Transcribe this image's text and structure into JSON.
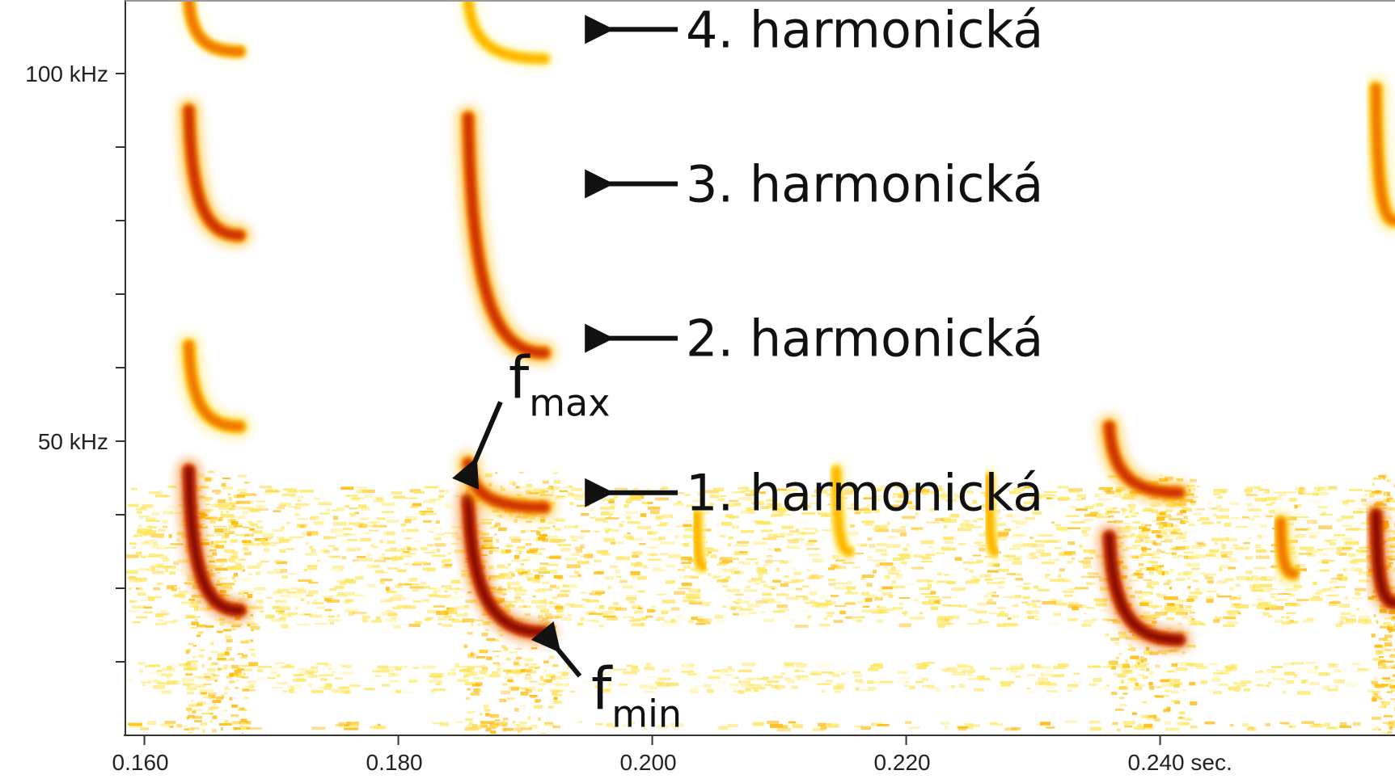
{
  "chart_data": {
    "type": "heatmap",
    "title": "",
    "xlabel": "",
    "ylabel": "",
    "x_unit": "sec.",
    "xlim": [
      0.1585,
      0.2585
    ],
    "ylim": [
      10,
      110
    ],
    "x_ticks": [
      {
        "value": 0.16,
        "label": "0.160"
      },
      {
        "value": 0.18,
        "label": "0.180"
      },
      {
        "value": 0.2,
        "label": "0.200"
      },
      {
        "value": 0.22,
        "label": "0.220"
      },
      {
        "value": 0.24,
        "label": "0.240 sec."
      }
    ],
    "y_ticks": [
      {
        "value": 20,
        "label": ""
      },
      {
        "value": 30,
        "label": ""
      },
      {
        "value": 40,
        "label": ""
      },
      {
        "value": 50,
        "label": "50 kHz"
      },
      {
        "value": 60,
        "label": ""
      },
      {
        "value": 70,
        "label": ""
      },
      {
        "value": 80,
        "label": ""
      },
      {
        "value": 90,
        "label": ""
      },
      {
        "value": 100,
        "label": "100 kHz"
      }
    ],
    "colormap": [
      "#fffbd0",
      "#ffe55a",
      "#ffb800",
      "#f07a00",
      "#d03500",
      "#8f0d00"
    ],
    "grid": false,
    "calls": [
      {
        "t_start": 0.1635,
        "t_end": 0.1675,
        "harmonics": [
          {
            "n": 1,
            "f_start": 46,
            "f_end": 27,
            "intensity": 1.0
          },
          {
            "n": 2,
            "f_start": 63,
            "f_end": 52,
            "intensity": 0.55
          },
          {
            "n": 3,
            "f_start": 95,
            "f_end": 78,
            "intensity": 0.75
          },
          {
            "n": 4,
            "f_start": 110,
            "f_end": 103,
            "intensity": 0.5
          }
        ]
      },
      {
        "t_start": 0.1855,
        "t_end": 0.1915,
        "harmonics": [
          {
            "n": 1,
            "f_start": 42,
            "f_end": 24,
            "intensity": 1.0
          },
          {
            "n": 2,
            "f_start": 47,
            "f_end": 41,
            "intensity": 0.8
          },
          {
            "n": 3,
            "f_start": 94,
            "f_end": 62,
            "intensity": 0.85
          },
          {
            "n": 4,
            "f_start": 110,
            "f_end": 102,
            "intensity": 0.45
          }
        ]
      },
      {
        "t_start": 0.2035,
        "t_end": 0.204,
        "harmonics": [
          {
            "n": 1,
            "f_start": 40,
            "f_end": 33,
            "intensity": 0.35
          }
        ]
      },
      {
        "t_start": 0.2145,
        "t_end": 0.2155,
        "harmonics": [
          {
            "n": 1,
            "f_start": 46,
            "f_end": 35,
            "intensity": 0.4
          }
        ]
      },
      {
        "t_start": 0.2265,
        "t_end": 0.227,
        "harmonics": [
          {
            "n": 1,
            "f_start": 45,
            "f_end": 35,
            "intensity": 0.45
          }
        ]
      },
      {
        "t_start": 0.236,
        "t_end": 0.2415,
        "harmonics": [
          {
            "n": 1,
            "f_start": 37,
            "f_end": 23,
            "intensity": 1.0
          },
          {
            "n": 2,
            "f_start": 52,
            "f_end": 43,
            "intensity": 0.8
          },
          {
            "n": 3,
            "f_start": 62,
            "f_end": 62,
            "intensity": 0.2
          }
        ]
      },
      {
        "t_start": 0.2495,
        "t_end": 0.2505,
        "harmonics": [
          {
            "n": 1,
            "f_start": 39,
            "f_end": 32,
            "intensity": 0.55
          }
        ]
      },
      {
        "t_start": 0.257,
        "t_end": 0.2585,
        "harmonics": [
          {
            "n": 1,
            "f_start": 40,
            "f_end": 28,
            "intensity": 1.0
          },
          {
            "n": 3,
            "f_start": 98,
            "f_end": 80,
            "intensity": 0.65
          }
        ]
      }
    ],
    "background_bands": [
      {
        "f_low": 25,
        "f_high": 44,
        "intensity": 0.25
      },
      {
        "f_low": 16,
        "f_high": 20,
        "intensity": 0.2
      },
      {
        "f_low": 11,
        "f_high": 12,
        "intensity": 0.35
      }
    ],
    "annotations": [
      {
        "id": "h4",
        "text": "4. harmonická",
        "freq": 106
      },
      {
        "id": "h3",
        "text": "3. harmonická",
        "freq": 85
      },
      {
        "id": "h2",
        "text": "2. harmonická",
        "freq": 64
      },
      {
        "id": "h1",
        "text": "1. harmonická",
        "freq": 43
      },
      {
        "id": "fmax",
        "base": "f",
        "sub": "max",
        "time": 0.1855,
        "freq": 46
      },
      {
        "id": "fmin",
        "base": "f",
        "sub": "min",
        "time": 0.192,
        "freq": 24
      }
    ]
  }
}
